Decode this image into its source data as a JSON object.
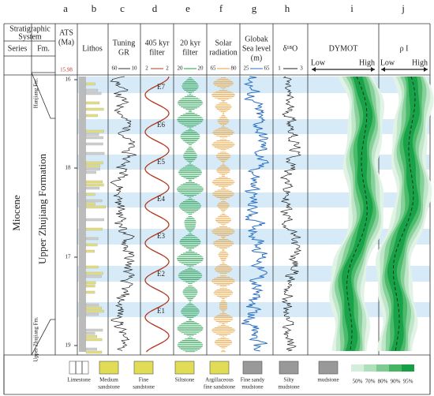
{
  "column_letters": [
    "a",
    "b",
    "c",
    "d",
    "e",
    "f",
    "g",
    "h",
    "i",
    "j"
  ],
  "header": {
    "stratigraphic_system": [
      "Stratigraphic",
      "System"
    ],
    "series": "Series",
    "fm": "Fm.",
    "ats": [
      "ATS",
      "(Ma)"
    ],
    "lithos": "Lithos",
    "tuning_gr": [
      "Tuning",
      "GR"
    ],
    "filter_405": [
      "405 kyr",
      "filter"
    ],
    "filter_20": [
      "20 kyr",
      "filter"
    ],
    "solar": [
      "Solar",
      "radiation"
    ],
    "sea_level": [
      "Globak",
      "Sea level",
      "(m)"
    ],
    "d18o": "δ¹⁸O",
    "dymot": "DYMOT",
    "rho": "ρ I"
  },
  "scales": {
    "tuning_gr": [
      "60",
      "10"
    ],
    "filter_405": [
      "2",
      "2"
    ],
    "filter_20": [
      "20",
      "20"
    ],
    "solar": [
      "65",
      "80"
    ],
    "sea_level": [
      "25",
      "65"
    ],
    "d18o": [
      "1",
      "3"
    ],
    "dymot": [
      "Low",
      "High"
    ],
    "rho": [
      "Low",
      "High"
    ]
  },
  "ats_start": "15.98",
  "ats_ticks": [
    "16",
    "18",
    "17",
    "19"
  ],
  "series": "Miocene",
  "formation": "Upper Zhujiang Formation",
  "hanjiang_fm": "Hanjiang Fm.",
  "zhujiang_fm": "Upper Zhujiang Fm.",
  "cycles": [
    "E7",
    "E6",
    "E5",
    "E4",
    "E3",
    "E2",
    "E1"
  ],
  "legend": {
    "lithology": [
      [
        "Limestone"
      ],
      [
        "Medium",
        "sandstone"
      ],
      [
        "Fine",
        "sandstone"
      ],
      [
        "Siltstone"
      ],
      [
        "Argillaceous",
        "fine sandstone"
      ],
      [
        "Fine sandy",
        "mudstone"
      ],
      [
        "Silty",
        "mudstone"
      ],
      [
        "mudstone"
      ]
    ],
    "percent": [
      "50%",
      "70%",
      "80%",
      "90%",
      "95%"
    ]
  }
}
